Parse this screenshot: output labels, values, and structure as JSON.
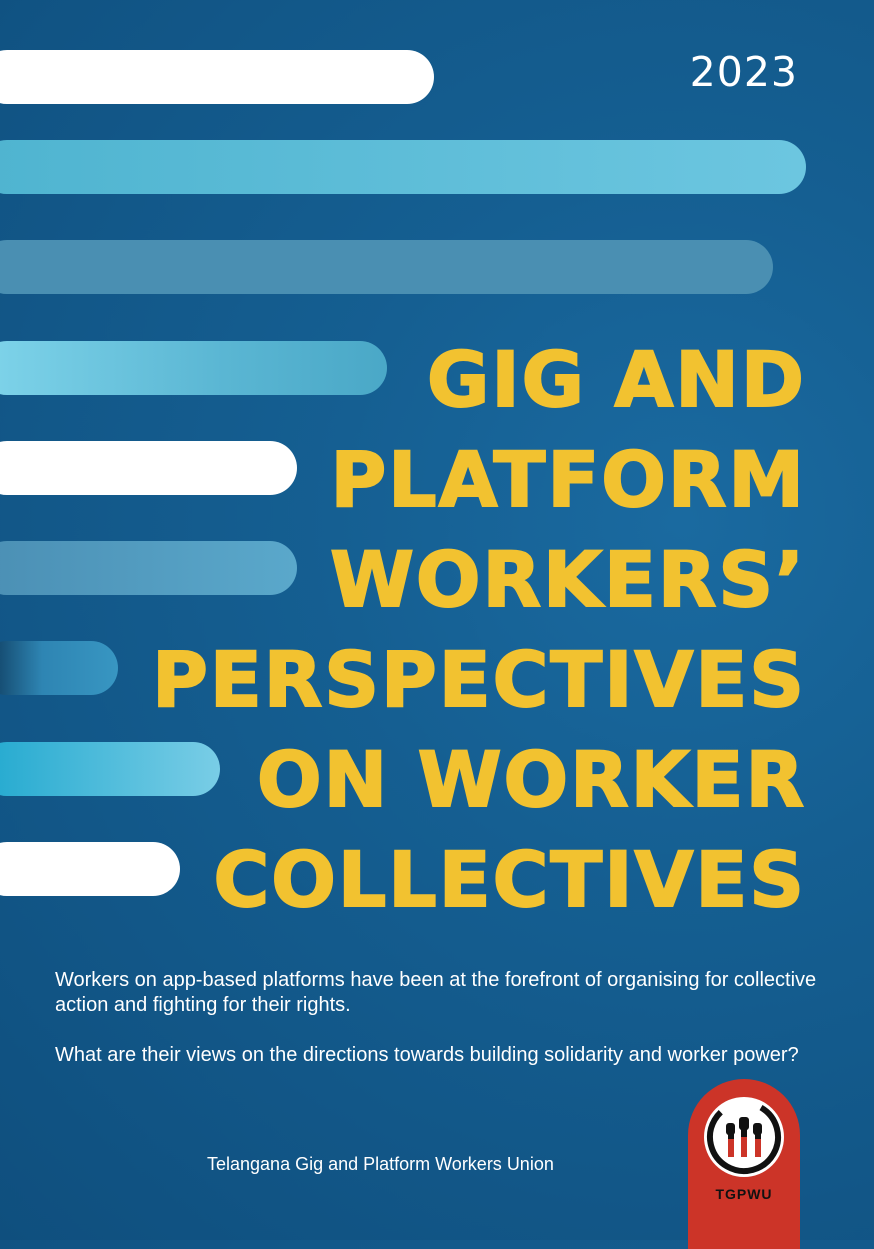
{
  "year": "2023",
  "title": {
    "lines": [
      "GIG AND",
      "PLATFORM",
      "WORKERS’",
      "PERSPECTIVES",
      "ON WORKER",
      "COLLECTIVES"
    ]
  },
  "description": {
    "paragraph1": "Workers on app-based platforms have been at the forefront of organising for collective action and fighting for their rights.",
    "paragraph2": "What are their views on the directions towards building solidarity and worker power?"
  },
  "publisher": "Telangana Gig and Platform Workers Union",
  "logo": {
    "text": "TGPWU"
  },
  "colors": {
    "background": "#155f92",
    "title": "#f2c230",
    "logo_red": "#cc3428",
    "bar_light": "#6cc6e0",
    "bar_mid": "#4a8fb2"
  }
}
